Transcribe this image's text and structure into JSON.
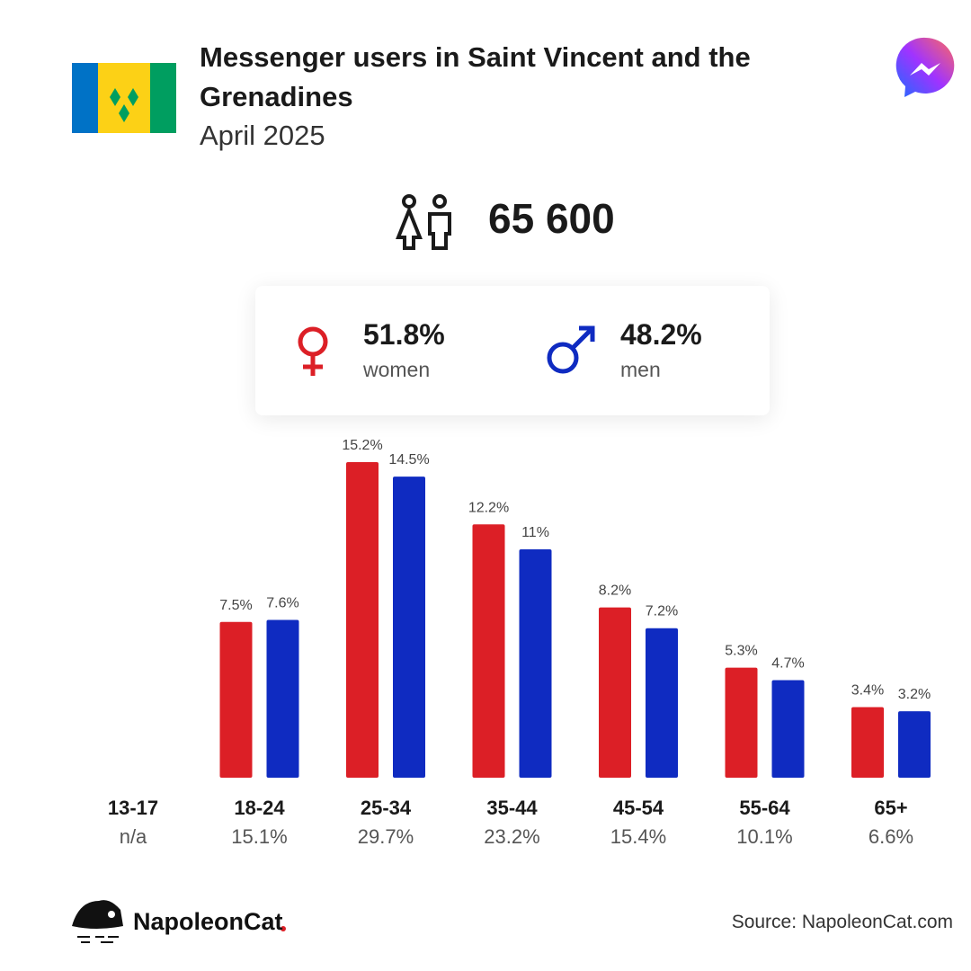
{
  "chart_data": {
    "type": "bar",
    "title": "Messenger users in Saint Vincent and the Grenadines",
    "subtitle": "April 2025",
    "total_users": 65600,
    "total_users_label": "65 600",
    "categories": [
      "13-17",
      "18-24",
      "25-34",
      "35-44",
      "45-54",
      "55-64",
      "65+"
    ],
    "totals": [
      null,
      15.1,
      29.7,
      23.2,
      15.4,
      10.1,
      6.6
    ],
    "total_labels": [
      "n/a",
      "15.1%",
      "29.7%",
      "23.2%",
      "15.4%",
      "10.1%",
      "6.6%"
    ],
    "series": [
      {
        "name": "women",
        "color": "#dc1f26",
        "share": 51.8,
        "share_label": "51.8%",
        "values": [
          null,
          7.5,
          15.2,
          12.2,
          8.2,
          5.3,
          3.4
        ],
        "value_labels": [
          null,
          "7.5%",
          "15.2%",
          "12.2%",
          "8.2%",
          "5.3%",
          "3.4%"
        ]
      },
      {
        "name": "men",
        "color": "#0f2bc1",
        "share": 48.2,
        "share_label": "48.2%",
        "values": [
          null,
          7.6,
          14.5,
          11,
          7.2,
          4.7,
          3.2
        ],
        "value_labels": [
          null,
          "7.6%",
          "14.5%",
          "11%",
          "7.2%",
          "4.7%",
          "3.2%"
        ]
      }
    ],
    "source": "Source: NapoleonCat.com",
    "brand": "NapoleonCat"
  }
}
